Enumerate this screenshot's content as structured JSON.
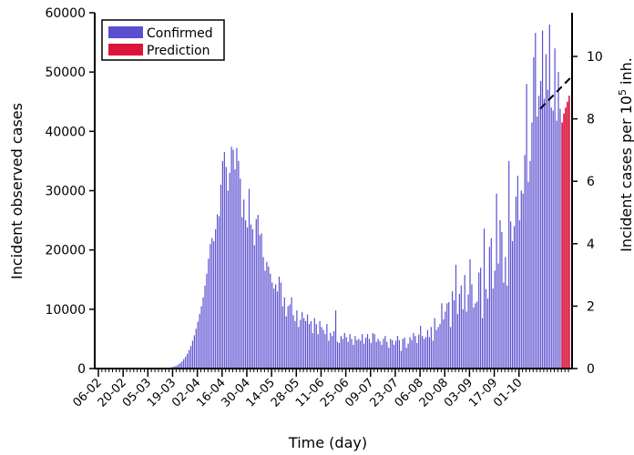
{
  "chart_data": {
    "type": "bar",
    "title": "",
    "xlabel": "Time (day)",
    "ylabel": "Incident observed cases",
    "y2label_main": "Incident cases per 10",
    "y2label_sup": "5",
    "y2label_tail": " inh.",
    "ylim": [
      0,
      60000
    ],
    "y2lim": [
      0,
      11.4
    ],
    "x_tick_labels": [
      "06-02",
      "20-02",
      "05-03",
      "19-03",
      "02-04",
      "16-04",
      "30-04",
      "14-05",
      "28-05",
      "11-06",
      "25-06",
      "09-07",
      "23-07",
      "06-08",
      "20-08",
      "03-09",
      "17-09",
      "01-10"
    ],
    "y_tick_values": [
      0,
      10000,
      20000,
      30000,
      40000,
      50000,
      60000
    ],
    "y2_tick_values": [
      0,
      2,
      4,
      6,
      8,
      10
    ],
    "legend": [
      {
        "label": "Confirmed",
        "color": "#5b4fcf"
      },
      {
        "label": "Prediction",
        "color": "#dc143c"
      }
    ],
    "legend_position": "top-left",
    "series": [
      {
        "name": "Confirmed",
        "color": "#5b4fcf",
        "values": [
          0,
          0,
          0,
          0,
          0,
          0,
          0,
          0,
          0,
          0,
          0,
          0,
          0,
          0,
          0,
          0,
          0,
          0,
          0,
          0,
          0,
          0,
          0,
          0,
          0,
          0,
          0,
          0,
          0,
          0,
          0,
          0,
          0,
          0,
          0,
          0,
          0,
          0,
          0,
          0,
          100,
          200,
          300,
          400,
          500,
          700,
          900,
          1200,
          1600,
          2000,
          2500,
          3100,
          3800,
          4700,
          5600,
          6700,
          7900,
          9200,
          10500,
          12000,
          14000,
          16000,
          18500,
          21000,
          22000,
          21500,
          23500,
          26000,
          25700,
          31000,
          35000,
          36500,
          34000,
          30000,
          33000,
          37400,
          36900,
          33600,
          37200,
          35000,
          32000,
          25500,
          28500,
          25000,
          23800,
          30300,
          24300,
          23500,
          20800,
          25200,
          25900,
          22500,
          22800,
          18800,
          16500,
          18000,
          17200,
          16000,
          14500,
          13500,
          14200,
          13000,
          15500,
          14500,
          10500,
          12000,
          8800,
          10500,
          10800,
          12000,
          9000,
          8000,
          9800,
          7000,
          8200,
          9500,
          8500,
          8000,
          9100,
          7500,
          8000,
          6000,
          8500,
          7500,
          5800,
          8000,
          7000,
          6500,
          5800,
          7500,
          4700,
          6000,
          5500,
          6300,
          9800,
          4500,
          4300,
          5500,
          5000,
          6000,
          5300,
          4500,
          5800,
          5000,
          4000,
          5500,
          4800,
          5000,
          4700,
          5800,
          4200,
          5200,
          5800,
          5000,
          4300,
          6000,
          5800,
          4500,
          5000,
          4600,
          4000,
          5000,
          5500,
          4500,
          3500,
          5000,
          4800,
          4000,
          4700,
          5500,
          4800,
          3000,
          5000,
          5200,
          3500,
          4200,
          5300,
          4800,
          6000,
          5500,
          4300,
          5700,
          7200,
          5500,
          5000,
          5300,
          6500,
          5300,
          7000,
          4700,
          8500,
          6500,
          7000,
          7500,
          11000,
          8300,
          9600,
          11000,
          11200,
          7000,
          13000,
          11500,
          17500,
          9200,
          12600,
          14000,
          10000,
          15800,
          9600,
          12500,
          18400,
          14200,
          10300,
          11000,
          11300,
          16200,
          17000,
          8500,
          23600,
          13400,
          11800,
          20500,
          22000,
          13500,
          16500,
          29500,
          17700,
          25000,
          23000,
          14500,
          18800,
          14000,
          35000,
          24800,
          21500,
          24000,
          29000,
          32500,
          25000,
          30000,
          29500,
          36000,
          48000,
          31500,
          35000,
          41500,
          52500,
          56600,
          42500,
          46000,
          48500,
          57000,
          45500,
          53000,
          47000,
          58000,
          44000,
          43500,
          54000,
          41800,
          50000,
          43800
        ]
      },
      {
        "name": "Prediction",
        "color": "#dc143c",
        "values": [
          41500,
          43000,
          44000,
          45000,
          46000
        ]
      }
    ],
    "trend_line": {
      "style": "dashed",
      "color": "#000000",
      "y_start": 43800,
      "y_end": 49000
    }
  }
}
